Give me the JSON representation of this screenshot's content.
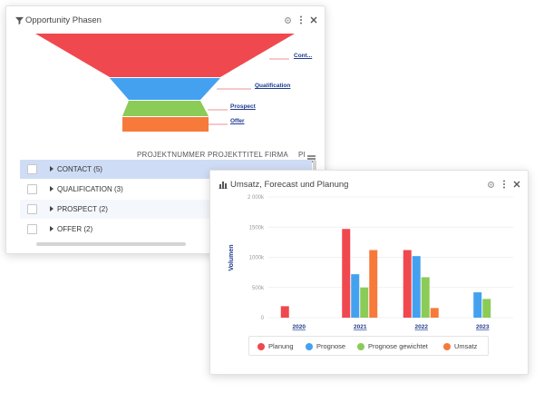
{
  "panel1": {
    "title": "Opportunity Phasen",
    "funnel": [
      {
        "label": "Cont...",
        "color": "#f0484f"
      },
      {
        "label": "Qualification",
        "color": "#44a1f0"
      },
      {
        "label": "Prospect",
        "color": "#8bcb57"
      },
      {
        "label": "Offer",
        "color": "#f77a3b"
      }
    ],
    "columns": [
      "PROJEKTNUMMER",
      "PROJEKTTITEL",
      "FIRMA",
      "PI"
    ],
    "rows": [
      "CONTACT (5)",
      "QUALIFICATION (3)",
      "PROSPECT (2)",
      "OFFER (2)"
    ],
    "icons": [
      "filter-icon",
      "gear-icon",
      "kebab-menu-icon",
      "close-icon",
      "hamburger-menu-icon"
    ]
  },
  "panel2": {
    "title": "Umsatz, Forecast und Planung",
    "icons": [
      "bar-chart-icon",
      "gear-icon",
      "kebab-menu-icon",
      "close-icon"
    ]
  },
  "colors": {
    "Planung": "#f0484f",
    "Prognose": "#44a1f0",
    "Prognose gewichtet": "#8bcb57",
    "Umsatz": "#f77a3b",
    "selected_row": "#cfdcf5",
    "link": "#1e3b8c"
  },
  "chart_data": {
    "type": "bar",
    "title": "",
    "xlabel": "",
    "ylabel": "Volumen",
    "categories": [
      "2020",
      "2021",
      "2022",
      "2023"
    ],
    "yticks": [
      "0",
      "500k",
      "1000k",
      "1500k",
      "2 000k"
    ],
    "ylim": [
      0,
      2000000
    ],
    "grid": true,
    "legend_position": "bottom",
    "series": [
      {
        "name": "Planung",
        "values": [
          190000,
          1470000,
          1120000,
          0
        ]
      },
      {
        "name": "Prognose",
        "values": [
          0,
          720000,
          1020000,
          420000
        ]
      },
      {
        "name": "Prognose gewichtet",
        "values": [
          0,
          500000,
          670000,
          310000
        ]
      },
      {
        "name": "Umsatz",
        "values": [
          0,
          1120000,
          160000,
          0
        ]
      }
    ]
  }
}
